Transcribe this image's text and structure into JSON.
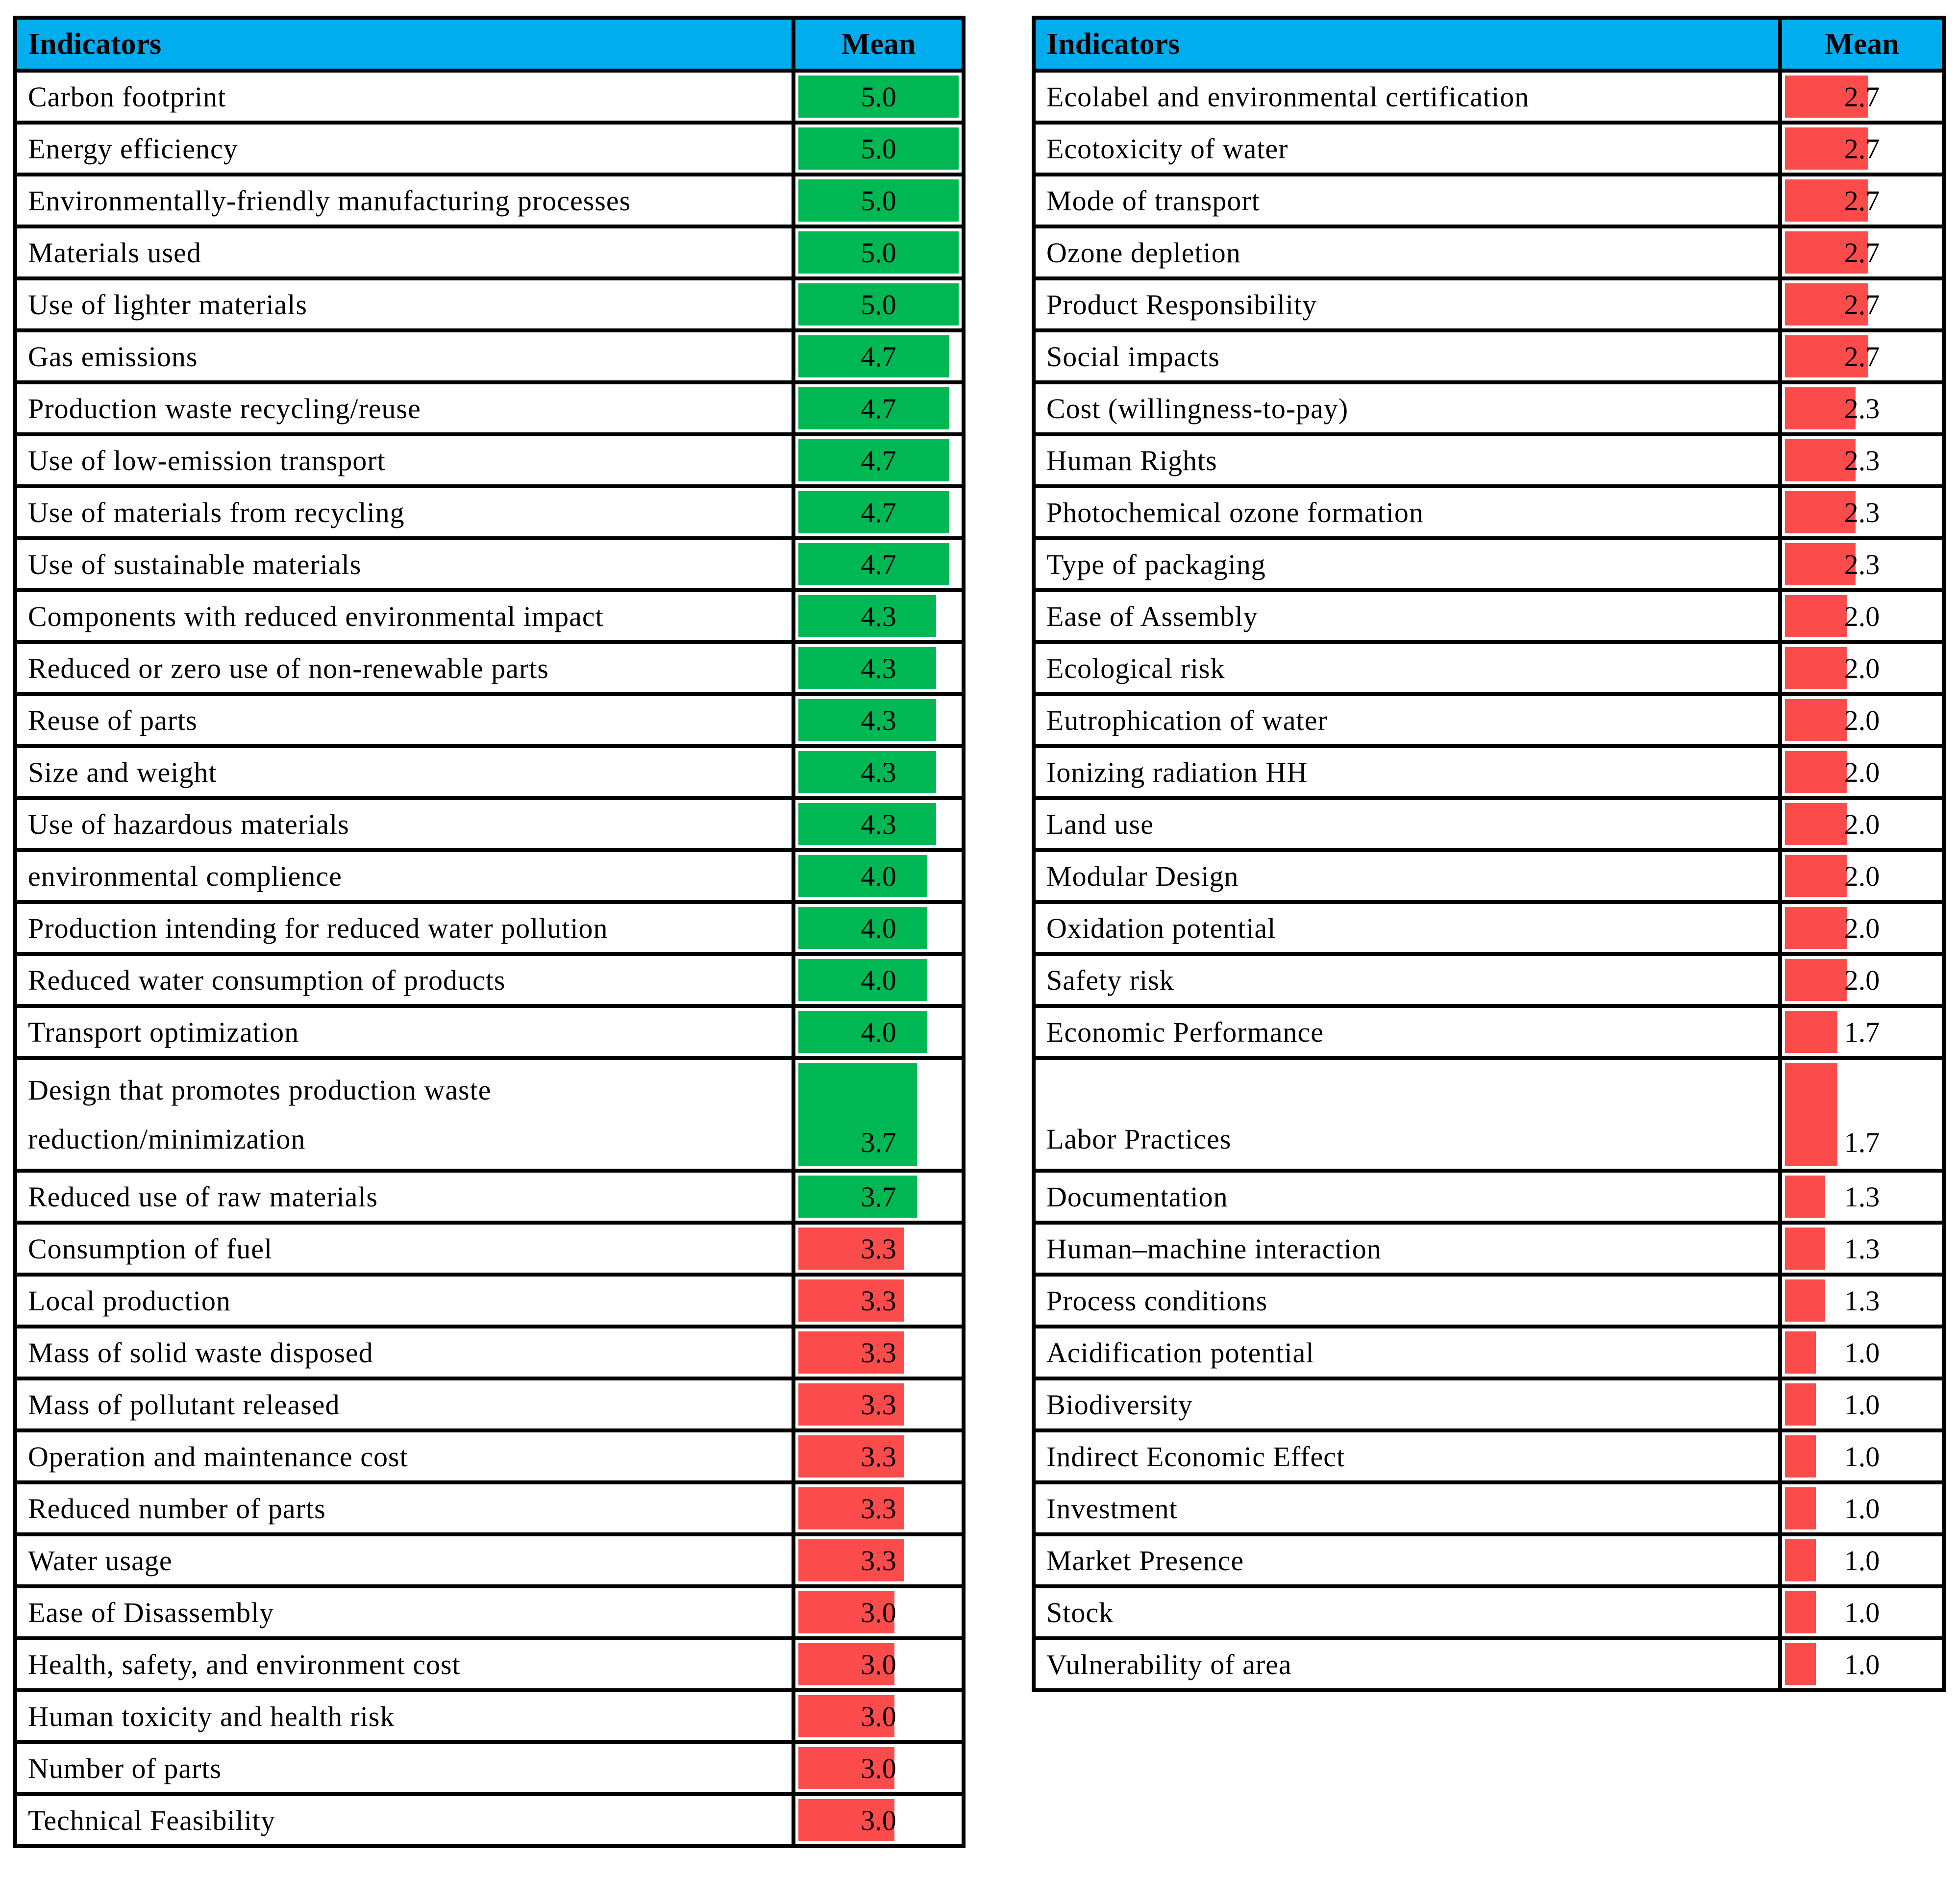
{
  "chart_data": {
    "type": "table",
    "layout_hint": "two side-by-side tables with in-cell data bars, bar length = value / 5.0",
    "bar_max": 5.0,
    "colors": {
      "header_bg": "#00ADEF",
      "green_bar": "#00B853",
      "red_bar": "#FB4B4B",
      "border": "#000000"
    },
    "tables": [
      {
        "columns": [
          "Indicators",
          "Mean"
        ],
        "rows": [
          {
            "label": "Carbon footprint",
            "value": "5.0",
            "color": "green"
          },
          {
            "label": "Energy efficiency",
            "value": "5.0",
            "color": "green"
          },
          {
            "label": "Environmentally-friendly manufacturing processes",
            "value": "5.0",
            "color": "green"
          },
          {
            "label": "Materials used",
            "value": "5.0",
            "color": "green"
          },
          {
            "label": "Use of lighter materials",
            "value": "5.0",
            "color": "green"
          },
          {
            "label": "Gas emissions",
            "value": "4.7",
            "color": "green"
          },
          {
            "label": "Production waste recycling/reuse",
            "value": "4.7",
            "color": "green"
          },
          {
            "label": "Use of low-emission transport",
            "value": "4.7",
            "color": "green"
          },
          {
            "label": "Use of materials from recycling",
            "value": "4.7",
            "color": "green"
          },
          {
            "label": "Use of sustainable materials",
            "value": "4.7",
            "color": "green"
          },
          {
            "label": "Components with reduced environmental impact",
            "value": "4.3",
            "color": "green"
          },
          {
            "label": "Reduced or zero use of non-renewable parts",
            "value": "4.3",
            "color": "green"
          },
          {
            "label": "Reuse of parts",
            "value": "4.3",
            "color": "green"
          },
          {
            "label": "Size and weight",
            "value": "4.3",
            "color": "green"
          },
          {
            "label": "Use of hazardous materials",
            "value": "4.3",
            "color": "green"
          },
          {
            "label": "environmental complience",
            "value": "4.0",
            "color": "green"
          },
          {
            "label": "Production intending for reduced water pollution",
            "value": "4.0",
            "color": "green"
          },
          {
            "label": "Reduced water consumption of products",
            "value": "4.0",
            "color": "green"
          },
          {
            "label": "Transport optimization",
            "value": "4.0",
            "color": "green"
          },
          {
            "label": "Design that promotes production waste\nreduction/minimization",
            "value": "3.7",
            "color": "green",
            "tall": true
          },
          {
            "label": "Reduced use of raw materials",
            "value": "3.7",
            "color": "green"
          },
          {
            "label": "Consumption of fuel",
            "value": "3.3",
            "color": "red"
          },
          {
            "label": "Local production",
            "value": "3.3",
            "color": "red"
          },
          {
            "label": "Mass of solid waste disposed",
            "value": "3.3",
            "color": "red"
          },
          {
            "label": "Mass of pollutant released",
            "value": "3.3",
            "color": "red"
          },
          {
            "label": "Operation and maintenance cost",
            "value": "3.3",
            "color": "red"
          },
          {
            "label": "Reduced number of parts",
            "value": "3.3",
            "color": "red"
          },
          {
            "label": "Water usage",
            "value": "3.3",
            "color": "red"
          },
          {
            "label": "Ease of Disassembly",
            "value": "3.0",
            "color": "red"
          },
          {
            "label": "Health, safety, and environment cost",
            "value": "3.0",
            "color": "red"
          },
          {
            "label": "Human toxicity and health risk",
            "value": "3.0",
            "color": "red"
          },
          {
            "label": "Number of parts",
            "value": "3.0",
            "color": "red"
          },
          {
            "label": "Technical Feasibility",
            "value": "3.0",
            "color": "red"
          }
        ]
      },
      {
        "columns": [
          "Indicators",
          "Mean"
        ],
        "rows": [
          {
            "label": "Ecolabel and environmental certification",
            "value": "2.7",
            "color": "red"
          },
          {
            "label": "Ecotoxicity of water",
            "value": "2.7",
            "color": "red"
          },
          {
            "label": "Mode of transport",
            "value": "2.7",
            "color": "red"
          },
          {
            "label": "Ozone depletion",
            "value": "2.7",
            "color": "red"
          },
          {
            "label": "Product Responsibility",
            "value": "2.7",
            "color": "red"
          },
          {
            "label": "Social impacts",
            "value": "2.7",
            "color": "red"
          },
          {
            "label": "Cost (willingness-to-pay)",
            "value": "2.3",
            "color": "red"
          },
          {
            "label": "Human Rights",
            "value": "2.3",
            "color": "red"
          },
          {
            "label": "Photochemical ozone formation",
            "value": "2.3",
            "color": "red"
          },
          {
            "label": "Type of packaging",
            "value": "2.3",
            "color": "red"
          },
          {
            "label": "Ease of Assembly",
            "value": "2.0",
            "color": "red"
          },
          {
            "label": "Ecological risk",
            "value": "2.0",
            "color": "red"
          },
          {
            "label": "Eutrophication of water",
            "value": "2.0",
            "color": "red"
          },
          {
            "label": "Ionizing radiation HH",
            "value": "2.0",
            "color": "red"
          },
          {
            "label": "Land use",
            "value": "2.0",
            "color": "red"
          },
          {
            "label": "Modular Design",
            "value": "2.0",
            "color": "red"
          },
          {
            "label": "Oxidation potential",
            "value": "2.0",
            "color": "red"
          },
          {
            "label": "Safety risk",
            "value": "2.0",
            "color": "red"
          },
          {
            "label": "Economic Performance",
            "value": "1.7",
            "color": "red"
          },
          {
            "label": "Labor Practices",
            "value": "1.7",
            "color": "red",
            "tall": true
          },
          {
            "label": "Documentation",
            "value": "1.3",
            "color": "red"
          },
          {
            "label": "Human–machine interaction",
            "value": "1.3",
            "color": "red"
          },
          {
            "label": "Process conditions",
            "value": "1.3",
            "color": "red"
          },
          {
            "label": "Acidification potential",
            "value": "1.0",
            "color": "red"
          },
          {
            "label": "Biodiversity",
            "value": "1.0",
            "color": "red"
          },
          {
            "label": "Indirect Economic Effect",
            "value": "1.0",
            "color": "red"
          },
          {
            "label": "Investment",
            "value": "1.0",
            "color": "red"
          },
          {
            "label": "Market Presence",
            "value": "1.0",
            "color": "red"
          },
          {
            "label": "Stock",
            "value": "1.0",
            "color": "red"
          },
          {
            "label": "Vulnerability of area",
            "value": "1.0",
            "color": "red"
          }
        ]
      }
    ]
  }
}
